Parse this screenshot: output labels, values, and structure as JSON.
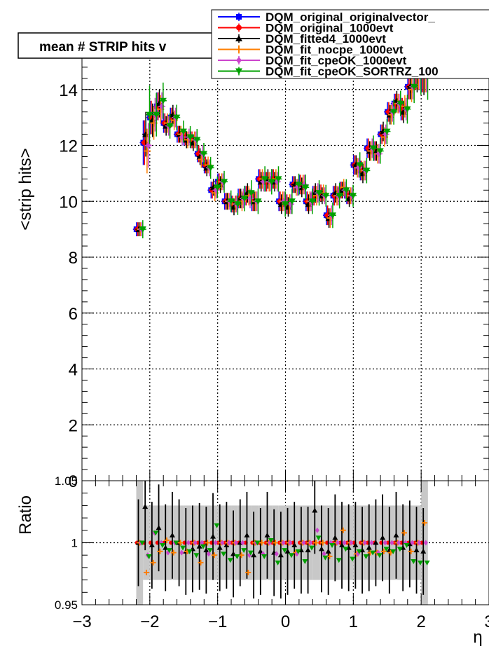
{
  "chart_data": [
    {
      "type": "scatter",
      "title": "mean # STRIP hits v",
      "ylabel": "<strip hits>",
      "xlabel": "",
      "xlim": [
        -3,
        3
      ],
      "ylim": [
        0,
        15.7
      ],
      "x_ticks": [
        "−3",
        "−2",
        "−1",
        "0",
        "1",
        "2",
        "3"
      ],
      "y_ticks": [
        "0",
        "2",
        "4",
        "6",
        "8",
        "10",
        "12",
        "14"
      ],
      "grid": true,
      "legend_position": "top-right",
      "x": [
        -2.15,
        -2.05,
        -1.95,
        -1.85,
        -1.75,
        -1.65,
        -1.55,
        -1.45,
        -1.35,
        -1.25,
        -1.15,
        -1.05,
        -0.95,
        -0.85,
        -0.75,
        -0.65,
        -0.55,
        -0.45,
        -0.35,
        -0.25,
        -0.15,
        -0.05,
        0.05,
        0.15,
        0.25,
        0.35,
        0.45,
        0.55,
        0.65,
        0.75,
        0.85,
        0.95,
        1.05,
        1.15,
        1.25,
        1.35,
        1.45,
        1.55,
        1.65,
        1.75,
        1.85,
        1.95,
        2.05
      ],
      "series": [
        {
          "name": "DQM_original_originalvector_",
          "color": "#0000ff",
          "marker": "square",
          "values": [
            9.0,
            12.1,
            13.0,
            13.4,
            12.8,
            13.0,
            12.4,
            12.3,
            12.2,
            11.7,
            11.3,
            10.4,
            10.7,
            10.0,
            9.9,
            10.1,
            10.2,
            10.0,
            10.8,
            10.7,
            10.8,
            10.0,
            9.9,
            10.6,
            10.6,
            10.0,
            10.2,
            10.3,
            9.5,
            10.2,
            10.4,
            10.2,
            11.3,
            11.1,
            11.9,
            11.8,
            12.4,
            13.2,
            13.5,
            13.3,
            14.1,
            14.6,
            14.8
          ]
        },
        {
          "name": "DQM_original_1000evt",
          "color": "#ff0000",
          "marker": "circle",
          "values": [
            9.0,
            12.1,
            13.0,
            13.4,
            12.8,
            13.0,
            12.4,
            12.3,
            12.2,
            11.7,
            11.3,
            10.4,
            10.7,
            10.0,
            9.9,
            10.1,
            10.2,
            10.0,
            10.8,
            10.7,
            10.8,
            10.0,
            9.9,
            10.6,
            10.6,
            10.0,
            10.2,
            10.3,
            9.5,
            10.2,
            10.4,
            10.2,
            11.3,
            11.1,
            11.9,
            11.8,
            12.4,
            13.2,
            13.5,
            13.3,
            14.1,
            14.6,
            14.8
          ]
        },
        {
          "name": "DQM_fitted4_1000evt",
          "color": "#000000",
          "marker": "triangle",
          "values": [
            9.0,
            12.4,
            12.9,
            13.5,
            12.7,
            13.1,
            12.4,
            12.2,
            12.1,
            11.6,
            11.2,
            10.5,
            10.6,
            10.0,
            9.8,
            10.1,
            10.3,
            10.0,
            10.7,
            10.8,
            10.7,
            9.9,
            9.8,
            10.6,
            10.5,
            9.9,
            10.3,
            10.2,
            9.4,
            10.3,
            10.4,
            10.1,
            11.3,
            11.0,
            11.8,
            11.8,
            12.5,
            13.1,
            13.6,
            13.2,
            14.1,
            14.5,
            14.7
          ]
        },
        {
          "name": "DQM_fit_nocpe_1000evt",
          "color": "#ff7f00",
          "marker": "cross",
          "values": [
            9.0,
            11.8,
            12.8,
            13.3,
            12.8,
            12.9,
            12.4,
            12.2,
            12.2,
            11.5,
            11.3,
            10.3,
            10.7,
            10.0,
            9.9,
            10.0,
            10.2,
            10.0,
            10.8,
            10.7,
            10.8,
            10.0,
            9.9,
            10.5,
            10.6,
            10.0,
            10.2,
            10.3,
            9.4,
            10.2,
            10.5,
            10.2,
            11.2,
            11.1,
            11.8,
            11.7,
            12.3,
            13.1,
            13.5,
            13.4,
            14.0,
            14.6,
            14.8
          ]
        },
        {
          "name": "DQM_fit_cpeOK_1000evt",
          "color": "#cc44cc",
          "marker": "diamond",
          "values": [
            9.0,
            12.0,
            13.1,
            13.4,
            12.7,
            13.0,
            12.3,
            12.3,
            12.2,
            11.7,
            11.2,
            10.4,
            10.7,
            10.0,
            9.9,
            10.1,
            10.1,
            10.0,
            10.7,
            10.7,
            10.7,
            10.0,
            9.9,
            10.5,
            10.6,
            10.0,
            10.3,
            10.2,
            9.5,
            10.2,
            10.4,
            10.2,
            11.2,
            11.1,
            11.9,
            11.7,
            12.4,
            13.2,
            13.5,
            13.3,
            14.1,
            14.6,
            14.8
          ]
        },
        {
          "name": "DQM_fit_cpeOK_SORTRZ_100",
          "color": "#00a000",
          "marker": "triangle-down",
          "values": [
            9.0,
            13.1,
            13.1,
            13.6,
            12.7,
            13.0,
            12.5,
            12.3,
            12.2,
            11.7,
            11.2,
            10.5,
            10.7,
            10.0,
            9.9,
            10.1,
            10.3,
            10.0,
            10.8,
            10.7,
            10.8,
            9.9,
            10.0,
            10.6,
            10.5,
            10.0,
            10.3,
            10.2,
            9.5,
            10.2,
            10.4,
            10.2,
            11.3,
            11.1,
            11.9,
            11.8,
            12.5,
            13.2,
            13.5,
            13.3,
            14.1,
            14.6,
            14.8
          ]
        }
      ]
    },
    {
      "type": "scatter",
      "title": "",
      "ylabel": "Ratio",
      "xlabel": "η",
      "xlim": [
        -3,
        3
      ],
      "ylim": [
        0.95,
        1.05
      ],
      "x_ticks": [
        "−3",
        "−2",
        "−1",
        "0",
        "1",
        "2",
        "3"
      ],
      "y_ticks": [
        "0.95",
        "1",
        "1.05"
      ],
      "grid": true,
      "x": [
        -2.15,
        -2.05,
        -1.95,
        -1.85,
        -1.75,
        -1.65,
        -1.55,
        -1.45,
        -1.35,
        -1.25,
        -1.15,
        -1.05,
        -0.95,
        -0.85,
        -0.75,
        -0.65,
        -0.55,
        -0.45,
        -0.35,
        -0.25,
        -0.15,
        -0.05,
        0.05,
        0.15,
        0.25,
        0.35,
        0.45,
        0.55,
        0.65,
        0.75,
        0.85,
        0.95,
        1.05,
        1.15,
        1.25,
        1.35,
        1.45,
        1.55,
        1.65,
        1.75,
        1.85,
        1.95,
        2.05
      ],
      "series": [
        {
          "name": "DQM_original_1000evt",
          "color": "#ff0000",
          "marker": "circle",
          "values": [
            1.0,
            1.0,
            1.0,
            1.0,
            1.0,
            1.0,
            1.0,
            1.0,
            1.0,
            1.0,
            1.0,
            1.0,
            1.0,
            1.0,
            1.0,
            1.0,
            1.0,
            1.0,
            1.0,
            1.0,
            1.0,
            1.0,
            1.0,
            1.0,
            1.0,
            1.0,
            1.0,
            1.0,
            1.0,
            1.0,
            1.0,
            1.0,
            1.0,
            1.0,
            1.0,
            1.0,
            1.0,
            1.0,
            1.0,
            1.0,
            1.0,
            1.0,
            1.0
          ]
        },
        {
          "name": "DQM_fitted4_1000evt",
          "color": "#000000",
          "marker": "triangle",
          "values": [
            1.0,
            1.029,
            0.998,
            1.012,
            0.996,
            1.006,
            1.0,
            0.993,
            0.995,
            0.997,
            0.994,
            1.005,
            0.996,
            0.998,
            0.991,
            1.0,
            1.006,
            0.99,
            0.993,
            1.006,
            0.992,
            0.99,
            0.993,
            0.998,
            0.994,
            0.994,
            1.026,
            0.995,
            0.993,
            1.004,
            0.998,
            0.996,
            0.998,
            0.994,
            0.996,
            1.0,
            1.004,
            0.994,
            1.006,
            0.996,
            0.999,
            0.994,
            0.993
          ]
        },
        {
          "name": "DQM_fit_nocpe_1000evt",
          "color": "#ff7f00",
          "marker": "cross",
          "values": [
            1.0,
            0.976,
            0.984,
            0.993,
            1.002,
            0.992,
            1.0,
            0.993,
            1.0,
            0.984,
            1.0,
            0.99,
            1.0,
            1.0,
            1.0,
            0.99,
            0.976,
            1.0,
            1.0,
            1.0,
            1.0,
            1.0,
            1.0,
            0.992,
            1.0,
            1.0,
            1.0,
            1.0,
            0.989,
            1.0,
            1.01,
            1.0,
            0.991,
            1.0,
            0.992,
            0.992,
            0.993,
            0.992,
            1.0,
            1.008,
            0.993,
            1.0,
            1.016
          ]
        },
        {
          "name": "DQM_fit_cpeOK_1000evt",
          "color": "#cc44cc",
          "marker": "diamond",
          "values": [
            1.0,
            0.99,
            1.008,
            1.0,
            0.992,
            1.0,
            0.992,
            1.0,
            1.0,
            1.0,
            0.991,
            1.0,
            1.0,
            1.0,
            1.0,
            1.0,
            0.99,
            1.0,
            0.991,
            1.0,
            0.991,
            1.0,
            1.0,
            0.991,
            1.0,
            1.0,
            1.01,
            0.991,
            1.0,
            1.0,
            1.0,
            1.0,
            0.991,
            1.0,
            1.0,
            0.992,
            1.0,
            1.0,
            1.0,
            1.0,
            1.0,
            1.0,
            1.0
          ]
        },
        {
          "name": "DQM_fit_cpeOK_SORTRZ_100",
          "color": "#00a000",
          "marker": "triangle-down",
          "values": [
            1.0,
            0.989,
            1.008,
            0.998,
            0.994,
            1.0,
            0.996,
            0.993,
            0.99,
            0.997,
            0.994,
            1.014,
            0.991,
            0.986,
            0.989,
            0.994,
            0.992,
            1.0,
            0.989,
            1.002,
            0.984,
            0.994,
            0.99,
            0.993,
            0.985,
            0.996,
            1.004,
            0.988,
            0.998,
            0.986,
            0.995,
            0.987,
            0.993,
            0.989,
            0.992,
            0.99,
            0.995,
            0.993,
            0.995,
            0.998,
            0.985,
            0.984,
            0.984
          ]
        }
      ]
    }
  ]
}
